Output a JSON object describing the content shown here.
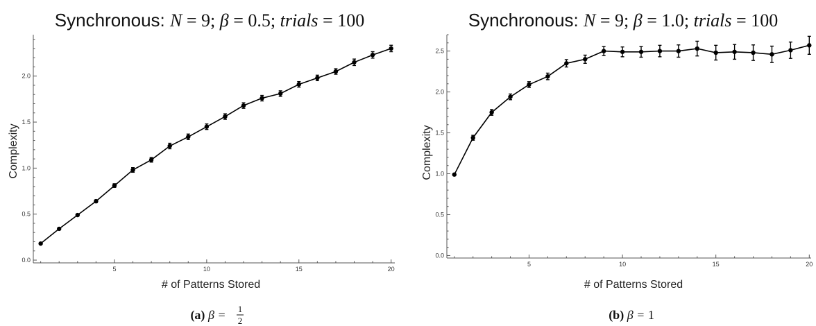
{
  "chart_data": [
    {
      "type": "line",
      "title_prefix": "Synchronous: ",
      "title_n": "N",
      "title_n_val": "9",
      "title_beta": "β",
      "title_beta_val": "0.5",
      "title_trials": "trials",
      "title_trials_val": "100",
      "xlabel": "# of Patterns Stored",
      "ylabel": "Complexity",
      "xlim": [
        0.6,
        20.2
      ],
      "ylim": [
        -0.03,
        2.45
      ],
      "xticks": [
        5,
        10,
        15,
        20
      ],
      "yticks": [
        0.0,
        0.5,
        1.0,
        1.5,
        2.0
      ],
      "ytick_labels": [
        "0.0",
        "0.5",
        "1.0",
        "1.5",
        "2.0"
      ],
      "grid": false,
      "x": [
        1,
        2,
        3,
        4,
        5,
        6,
        7,
        8,
        9,
        10,
        11,
        12,
        13,
        14,
        15,
        16,
        17,
        18,
        19,
        20
      ],
      "values": [
        0.18,
        0.34,
        0.49,
        0.64,
        0.81,
        0.98,
        1.09,
        1.24,
        1.34,
        1.45,
        1.56,
        1.68,
        1.76,
        1.81,
        1.91,
        1.98,
        2.05,
        2.15,
        2.23,
        2.3
      ],
      "errors": [
        0.005,
        0.01,
        0.012,
        0.015,
        0.02,
        0.025,
        0.025,
        0.03,
        0.03,
        0.03,
        0.03,
        0.03,
        0.03,
        0.03,
        0.03,
        0.03,
        0.03,
        0.035,
        0.035,
        0.035
      ],
      "caption_label": "(a)",
      "caption_math": "β = ",
      "caption_num": "1",
      "caption_den": "2"
    },
    {
      "type": "line",
      "title_prefix": "Synchronous: ",
      "title_n": "N",
      "title_n_val": "9",
      "title_beta": "β",
      "title_beta_val": "1.0",
      "title_trials": "trials",
      "title_trials_val": "100",
      "xlabel": "# of Patterns Stored",
      "ylabel": "Complexity",
      "xlim": [
        0.6,
        20.1
      ],
      "ylim": [
        -0.03,
        2.7
      ],
      "xticks": [
        5,
        10,
        15,
        20
      ],
      "yticks": [
        0.0,
        0.5,
        1.0,
        1.5,
        2.0,
        2.5
      ],
      "ytick_labels": [
        "0.0",
        "0.5",
        "1.0",
        "1.5",
        "2.0",
        "2.5"
      ],
      "grid": false,
      "x": [
        1,
        2,
        3,
        4,
        5,
        6,
        7,
        8,
        9,
        10,
        11,
        12,
        13,
        14,
        15,
        16,
        17,
        18,
        19,
        20
      ],
      "values": [
        0.99,
        1.44,
        1.75,
        1.94,
        2.09,
        2.19,
        2.35,
        2.4,
        2.5,
        2.49,
        2.49,
        2.5,
        2.5,
        2.53,
        2.48,
        2.49,
        2.48,
        2.46,
        2.51,
        2.57
      ],
      "errors": [
        0.01,
        0.03,
        0.035,
        0.035,
        0.035,
        0.04,
        0.045,
        0.05,
        0.055,
        0.06,
        0.065,
        0.07,
        0.075,
        0.09,
        0.09,
        0.09,
        0.095,
        0.1,
        0.1,
        0.11
      ],
      "caption_label": "(b)",
      "caption_math": "β = ",
      "caption_value": "1"
    }
  ]
}
